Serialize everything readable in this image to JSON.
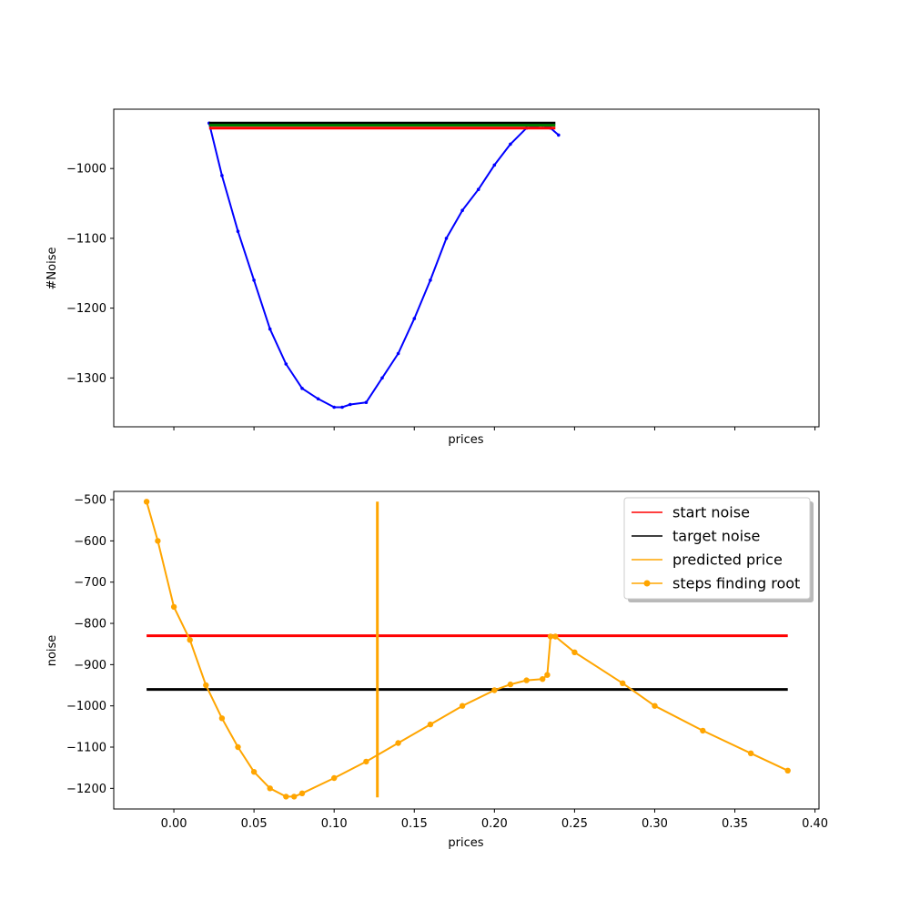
{
  "chart_data": [
    {
      "type": "line",
      "xlabel": "prices",
      "ylabel": "#Noise",
      "xlim": [
        -0.0375,
        0.4025
      ],
      "ylim": [
        -1370,
        -915
      ],
      "x_ticks": [
        0.0,
        0.05,
        0.1,
        0.15,
        0.2,
        0.25,
        0.3,
        0.35,
        0.4
      ],
      "x_tick_labels_visible": false,
      "y_ticks": [
        -1300,
        -1200,
        -1100,
        -1000
      ],
      "y_tick_labels": [
        "−1300",
        "−1200",
        "−1100",
        "−1000"
      ],
      "series": [
        {
          "color": "#0000ff",
          "marker": "dot",
          "x": [
            0.022,
            0.03,
            0.04,
            0.05,
            0.06,
            0.07,
            0.08,
            0.09,
            0.1,
            0.105,
            0.11,
            0.12,
            0.13,
            0.14,
            0.15,
            0.16,
            0.17,
            0.18,
            0.19,
            0.2,
            0.21,
            0.22,
            0.23,
            0.235,
            0.24
          ],
          "y": [
            -935,
            -1010,
            -1090,
            -1160,
            -1230,
            -1280,
            -1315,
            -1330,
            -1342,
            -1342,
            -1338,
            -1335,
            -1300,
            -1265,
            -1215,
            -1160,
            -1100,
            -1060,
            -1030,
            -995,
            -965,
            -942,
            -938,
            -942,
            -952
          ]
        },
        {
          "color": "#000000",
          "x": [
            0.022,
            0.238
          ],
          "y": [
            -935,
            -935
          ]
        },
        {
          "color": "#008000",
          "x": [
            0.022,
            0.238
          ],
          "y": [
            -938,
            -938
          ]
        },
        {
          "color": "#ff0000",
          "x": [
            0.022,
            0.238
          ],
          "y": [
            -942,
            -942
          ]
        }
      ]
    },
    {
      "type": "line",
      "xlabel": "prices",
      "ylabel": "noise",
      "xlim": [
        -0.0375,
        0.4025
      ],
      "ylim": [
        -1250,
        -480
      ],
      "x_ticks": [
        0.0,
        0.05,
        0.1,
        0.15,
        0.2,
        0.25,
        0.3,
        0.35,
        0.4
      ],
      "x_tick_labels": [
        "0.00",
        "0.05",
        "0.10",
        "0.15",
        "0.20",
        "0.25",
        "0.30",
        "0.35",
        "0.40"
      ],
      "y_ticks": [
        -1200,
        -1100,
        -1000,
        -900,
        -800,
        -700,
        -600,
        -500
      ],
      "y_tick_labels": [
        "−1200",
        "−1100",
        "−1000",
        "−900",
        "−800",
        "−700",
        "−600",
        "−500"
      ],
      "legend": {
        "placement": "top-right",
        "entries": [
          {
            "label": "start noise",
            "color": "#ff0000",
            "marker": false
          },
          {
            "label": "target noise",
            "color": "#000000",
            "marker": false
          },
          {
            "label": "predicted price",
            "color": "#ffa500",
            "marker": false
          },
          {
            "label": "steps finding root",
            "color": "#ffa500",
            "marker": true
          }
        ]
      },
      "series": [
        {
          "name": "start noise",
          "color": "#ff0000",
          "x": [
            -0.017,
            0.383
          ],
          "y": [
            -830,
            -830
          ]
        },
        {
          "name": "target noise",
          "color": "#000000",
          "x": [
            -0.017,
            0.383
          ],
          "y": [
            -960,
            -960
          ]
        },
        {
          "name": "predicted price",
          "color": "#ffa500",
          "x": [
            0.127,
            0.127
          ],
          "y": [
            -505,
            -1222
          ]
        },
        {
          "name": "steps finding root",
          "color": "#ffa500",
          "marker": "dot",
          "x": [
            -0.017,
            -0.01,
            0.0,
            0.01,
            0.02,
            0.03,
            0.04,
            0.05,
            0.06,
            0.07,
            0.075,
            0.08,
            0.1,
            0.12,
            0.14,
            0.16,
            0.18,
            0.2,
            0.21,
            0.22,
            0.23,
            0.233,
            0.235,
            0.238,
            0.25,
            0.28,
            0.3,
            0.33,
            0.36,
            0.383
          ],
          "y": [
            -505,
            -600,
            -760,
            -840,
            -950,
            -1030,
            -1100,
            -1160,
            -1200,
            -1220,
            -1220,
            -1212,
            -1175,
            -1135,
            -1090,
            -1045,
            -1000,
            -962,
            -948,
            -938,
            -935,
            -925,
            -832,
            -832,
            -870,
            -945,
            -1000,
            -1060,
            -1115,
            -1157
          ]
        }
      ]
    }
  ]
}
